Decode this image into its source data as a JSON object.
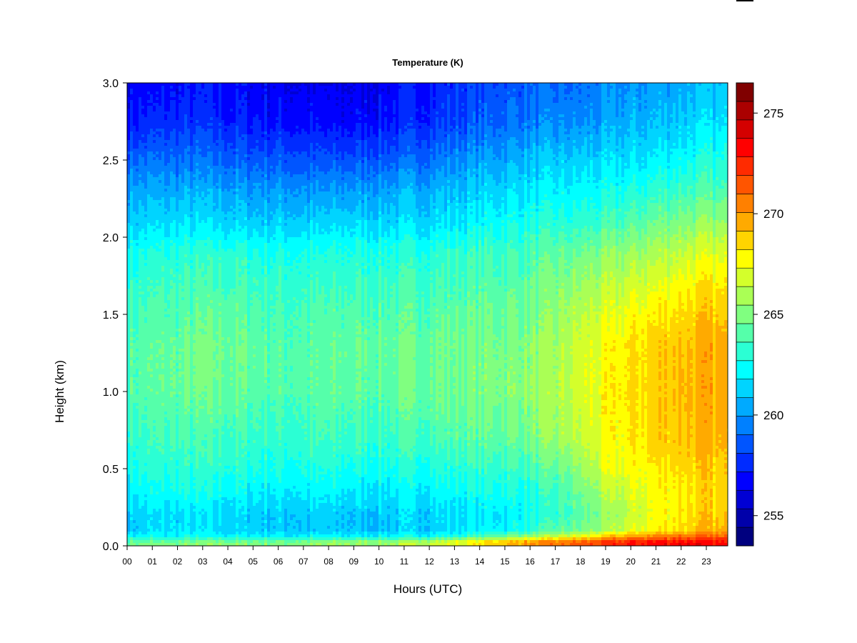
{
  "chart_data": {
    "type": "heatmap",
    "title": "Temperature (K)",
    "xlabel": "Hours (UTC)",
    "ylabel": "Height (km)",
    "x_ticks": [
      "00",
      "01",
      "02",
      "03",
      "04",
      "05",
      "06",
      "07",
      "08",
      "09",
      "10",
      "11",
      "12",
      "13",
      "14",
      "15",
      "16",
      "17",
      "18",
      "19",
      "20",
      "21",
      "22",
      "23"
    ],
    "xlim": [
      0,
      23.85
    ],
    "y_ticks": [
      "0.0",
      "0.5",
      "1.0",
      "1.5",
      "2.0",
      "2.5",
      "3.0"
    ],
    "y_tick_values": [
      0,
      0.5,
      1.0,
      1.5,
      2.0,
      2.5,
      3.0
    ],
    "ylim": [
      0,
      3.0
    ],
    "colorbar": {
      "range": [
        254,
        276
      ],
      "step": 1,
      "tick_labels": [
        "255",
        "260",
        "265",
        "270",
        "275"
      ],
      "tick_values": [
        255,
        260,
        265,
        270,
        275
      ],
      "colors": [
        "#00007F",
        "#0000AA",
        "#0000D4",
        "#0000FF",
        "#002BFF",
        "#0055FF",
        "#0080FF",
        "#00AAFF",
        "#00D4FF",
        "#00FFFF",
        "#2BFFD4",
        "#55FFAA",
        "#80FF80",
        "#AAFF55",
        "#D4FF2B",
        "#FFFF00",
        "#FFD400",
        "#FFAA00",
        "#FF8000",
        "#FF5500",
        "#FF2B00",
        "#FF0000",
        "#D40000",
        "#AA0000",
        "#800000"
      ]
    },
    "field": {
      "x_hours": [
        0,
        1,
        2,
        3,
        4,
        5,
        6,
        7,
        8,
        9,
        10,
        11,
        12,
        13,
        14,
        15,
        16,
        17,
        18,
        19,
        20,
        21,
        22,
        23,
        23.85
      ],
      "y_km": [
        0,
        0.03,
        0.06,
        0.1,
        0.2,
        0.35,
        0.5,
        0.7,
        1.0,
        1.3,
        1.6,
        1.9,
        2.1,
        2.3,
        2.5,
        2.75,
        3.0
      ],
      "values_K": [
        [
          266.6,
          266.6,
          266.8,
          267.0,
          267.0,
          266.8,
          266.8,
          267.0,
          267.2,
          267.4,
          267.6,
          268.0,
          268.4,
          269.0,
          270.0,
          271.0,
          272.0,
          272.8,
          273.6,
          274.4,
          275.2,
          275.6,
          276.0,
          275.6,
          275.0
        ],
        [
          265.6,
          265.6,
          265.8,
          266.0,
          266.0,
          265.8,
          265.8,
          266.0,
          266.2,
          266.4,
          266.6,
          267.0,
          267.6,
          268.4,
          269.4,
          270.4,
          271.4,
          272.2,
          273.0,
          273.8,
          274.6,
          275.0,
          275.2,
          275.0,
          274.6
        ],
        [
          263.6,
          263.6,
          263.6,
          263.6,
          263.6,
          263.4,
          263.4,
          263.4,
          263.4,
          263.4,
          263.4,
          263.6,
          263.8,
          264.4,
          265.2,
          266.0,
          267.0,
          268.0,
          269.2,
          270.6,
          271.8,
          272.6,
          273.0,
          273.2,
          273.0
        ],
        [
          262.4,
          262.6,
          262.8,
          262.8,
          262.6,
          262.4,
          262.4,
          262.2,
          262.2,
          262.2,
          262.2,
          262.4,
          262.6,
          262.8,
          263.2,
          263.6,
          264.4,
          265.4,
          266.2,
          267.2,
          268.6,
          269.6,
          270.4,
          271.0,
          270.8
        ],
        [
          262.4,
          262.6,
          262.8,
          262.8,
          262.6,
          262.4,
          262.4,
          262.2,
          262.2,
          262.2,
          262.2,
          262.4,
          262.6,
          262.8,
          263.0,
          263.2,
          263.6,
          264.4,
          265.4,
          266.6,
          268.0,
          269.2,
          270.0,
          270.6,
          270.4
        ],
        [
          263.2,
          263.6,
          263.8,
          263.8,
          263.6,
          263.4,
          263.2,
          263.2,
          263.2,
          263.0,
          263.0,
          263.2,
          263.4,
          263.6,
          263.8,
          264.0,
          264.2,
          264.8,
          266.0,
          267.6,
          268.6,
          269.4,
          270.0,
          270.4,
          270.2
        ],
        [
          264.0,
          264.2,
          264.4,
          264.4,
          264.4,
          264.2,
          264.0,
          264.0,
          264.0,
          264.0,
          264.0,
          264.0,
          264.2,
          264.4,
          264.6,
          264.8,
          265.0,
          265.6,
          267.0,
          268.6,
          269.2,
          269.8,
          270.4,
          270.6,
          270.4
        ],
        [
          264.6,
          264.8,
          265.0,
          265.0,
          265.0,
          264.8,
          264.6,
          264.8,
          264.8,
          264.8,
          264.8,
          265.0,
          265.2,
          265.4,
          265.6,
          265.8,
          266.2,
          267.0,
          268.0,
          269.2,
          269.8,
          270.6,
          271.0,
          271.2,
          270.8
        ],
        [
          265.4,
          265.6,
          265.8,
          266.0,
          266.0,
          265.6,
          265.4,
          265.4,
          265.6,
          265.6,
          265.6,
          265.8,
          266.0,
          266.2,
          266.4,
          266.6,
          266.8,
          267.4,
          268.6,
          269.4,
          270.0,
          270.6,
          271.2,
          271.4,
          271.0
        ],
        [
          265.4,
          265.6,
          265.8,
          266.2,
          266.2,
          265.8,
          265.4,
          265.4,
          265.6,
          265.8,
          265.8,
          265.8,
          266.0,
          266.2,
          266.2,
          266.4,
          266.6,
          267.2,
          268.4,
          269.2,
          270.0,
          270.6,
          271.0,
          271.4,
          271.0
        ],
        [
          264.8,
          265.0,
          265.2,
          265.4,
          265.4,
          265.2,
          265.0,
          265.0,
          265.0,
          265.2,
          265.2,
          265.2,
          265.4,
          265.4,
          265.6,
          265.8,
          266.0,
          266.6,
          267.4,
          268.2,
          268.8,
          269.4,
          270.0,
          270.4,
          270.0
        ],
        [
          263.8,
          264.0,
          264.2,
          264.4,
          264.4,
          264.2,
          264.0,
          264.0,
          264.0,
          264.2,
          264.2,
          264.2,
          264.4,
          264.6,
          264.8,
          265.0,
          265.2,
          265.6,
          266.0,
          266.6,
          267.0,
          267.6,
          268.2,
          268.6,
          268.4
        ],
        [
          262.4,
          262.6,
          262.8,
          262.8,
          262.6,
          262.4,
          262.4,
          262.4,
          262.4,
          262.6,
          262.6,
          262.6,
          262.8,
          263.0,
          263.4,
          263.8,
          264.0,
          264.2,
          264.4,
          264.8,
          265.4,
          266.0,
          266.6,
          266.8,
          266.6
        ],
        [
          261.4,
          261.4,
          261.6,
          261.6,
          261.4,
          261.2,
          261.2,
          261.0,
          261.0,
          261.2,
          261.4,
          261.6,
          261.8,
          262.0,
          262.4,
          262.8,
          263.0,
          263.2,
          263.4,
          263.6,
          264.0,
          264.6,
          265.0,
          265.2,
          265.0
        ],
        [
          259.8,
          260.0,
          260.0,
          260.0,
          259.8,
          259.6,
          259.6,
          259.4,
          259.2,
          259.4,
          259.6,
          259.8,
          260.2,
          260.8,
          261.2,
          261.6,
          262.0,
          262.2,
          262.4,
          262.6,
          262.8,
          263.2,
          263.6,
          264.0,
          263.8
        ],
        [
          258.0,
          258.2,
          258.4,
          258.4,
          258.2,
          258.0,
          257.8,
          257.6,
          257.4,
          257.6,
          257.8,
          258.2,
          258.6,
          259.0,
          259.6,
          260.0,
          260.4,
          260.6,
          260.8,
          261.2,
          261.6,
          262.0,
          262.4,
          262.6,
          262.6
        ],
        [
          257.4,
          257.4,
          257.6,
          257.8,
          257.6,
          257.4,
          257.2,
          257.0,
          256.8,
          257.0,
          257.2,
          257.6,
          258.0,
          258.6,
          259.0,
          259.4,
          259.6,
          259.8,
          260.0,
          260.4,
          260.8,
          261.2,
          261.6,
          261.8,
          261.8
        ]
      ]
    }
  }
}
